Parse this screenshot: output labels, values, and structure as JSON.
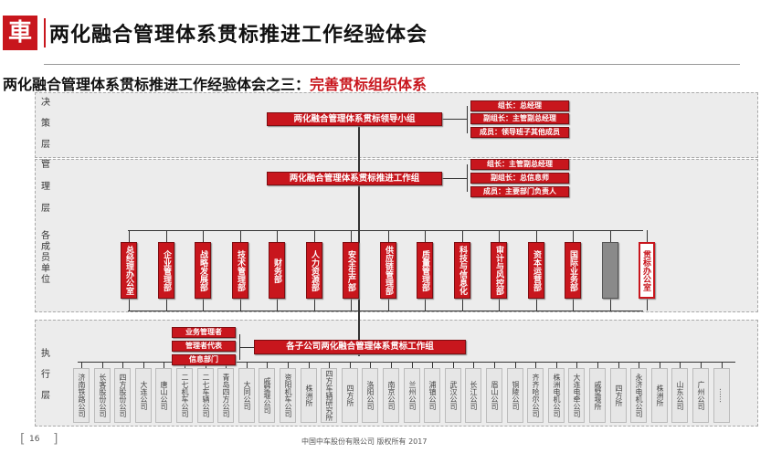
{
  "header": {
    "logo_glyph": "車",
    "title": "两化融合管理体系贯标推进工作经验体会"
  },
  "subtitle": {
    "prefix": "两化融合管理体系贯标推进工作经验体会之三：",
    "highlight": "完善贯标组织体系"
  },
  "layers": {
    "decision": [
      "决",
      "策",
      "层"
    ],
    "management": [
      "管",
      "理",
      "层"
    ],
    "departments": [
      "各",
      "成",
      "员",
      "单",
      "位"
    ],
    "execution": [
      "执",
      "行",
      "层"
    ]
  },
  "decision_box": "两化融合管理体系贯标领导小组",
  "decision_roles": [
    "组长：总经理",
    "副组长：主管副总经理",
    "成员：领导班子其他成员"
  ],
  "management_box": "两化融合管理体系贯标推进工作组",
  "management_roles": [
    "组长：主管副总经理",
    "副组长：总信息师",
    "成员：主要部门负责人"
  ],
  "departments": [
    {
      "label": "总经理办公室",
      "style": "red"
    },
    {
      "label": "企业管理部",
      "style": "red"
    },
    {
      "label": "战略发展部",
      "style": "red"
    },
    {
      "label": "技术管理部",
      "style": "red"
    },
    {
      "label": "财务部",
      "style": "red"
    },
    {
      "label": "人力资源部",
      "style": "red"
    },
    {
      "label": "安全生产部",
      "style": "red"
    },
    {
      "label": "供应链管理部",
      "style": "red"
    },
    {
      "label": "质量管理部",
      "style": "red"
    },
    {
      "label": "科技与信息化部",
      "style": "red"
    },
    {
      "label": "审计与风控部",
      "style": "red"
    },
    {
      "label": "资本运营部",
      "style": "red"
    },
    {
      "label": "国际业务部",
      "style": "red"
    },
    {
      "label": "",
      "style": "gray"
    },
    {
      "label": "贯标办公室",
      "style": "white"
    }
  ],
  "execution_left": [
    "业务管理者",
    "管理者代表",
    "信息部门"
  ],
  "execution_box": "各子公司两化融合管理体系贯标工作组",
  "subsidiaries": [
    "济南铁路公司",
    "长客股份公司",
    "四方股份公司",
    "大连公司",
    "唐山公司",
    "二七机车公司",
    "二七车辆公司",
    "青岛四方公司",
    "大同公司",
    "戚墅堰公司",
    "资阳机车公司",
    "株洲所",
    "四方车辆研究所",
    "四方所",
    "洛阳公司",
    "南京公司",
    "兰州公司",
    "浦镇公司",
    "武汉公司",
    "长江公司",
    "眉山公司",
    "铜陵公司",
    "齐齐哈尔公司",
    "株洲电机公司",
    "大连电牵公司",
    "戚墅堰所",
    "四方所",
    "永济电机公司",
    "株洲所",
    "山东公司",
    "广州公司",
    "……"
  ],
  "footer": {
    "page_number": "16",
    "copyright": "中国中车股份有限公司 版权所有 2017"
  },
  "colors": {
    "accent": "#c8161d",
    "band": "#ececec"
  }
}
